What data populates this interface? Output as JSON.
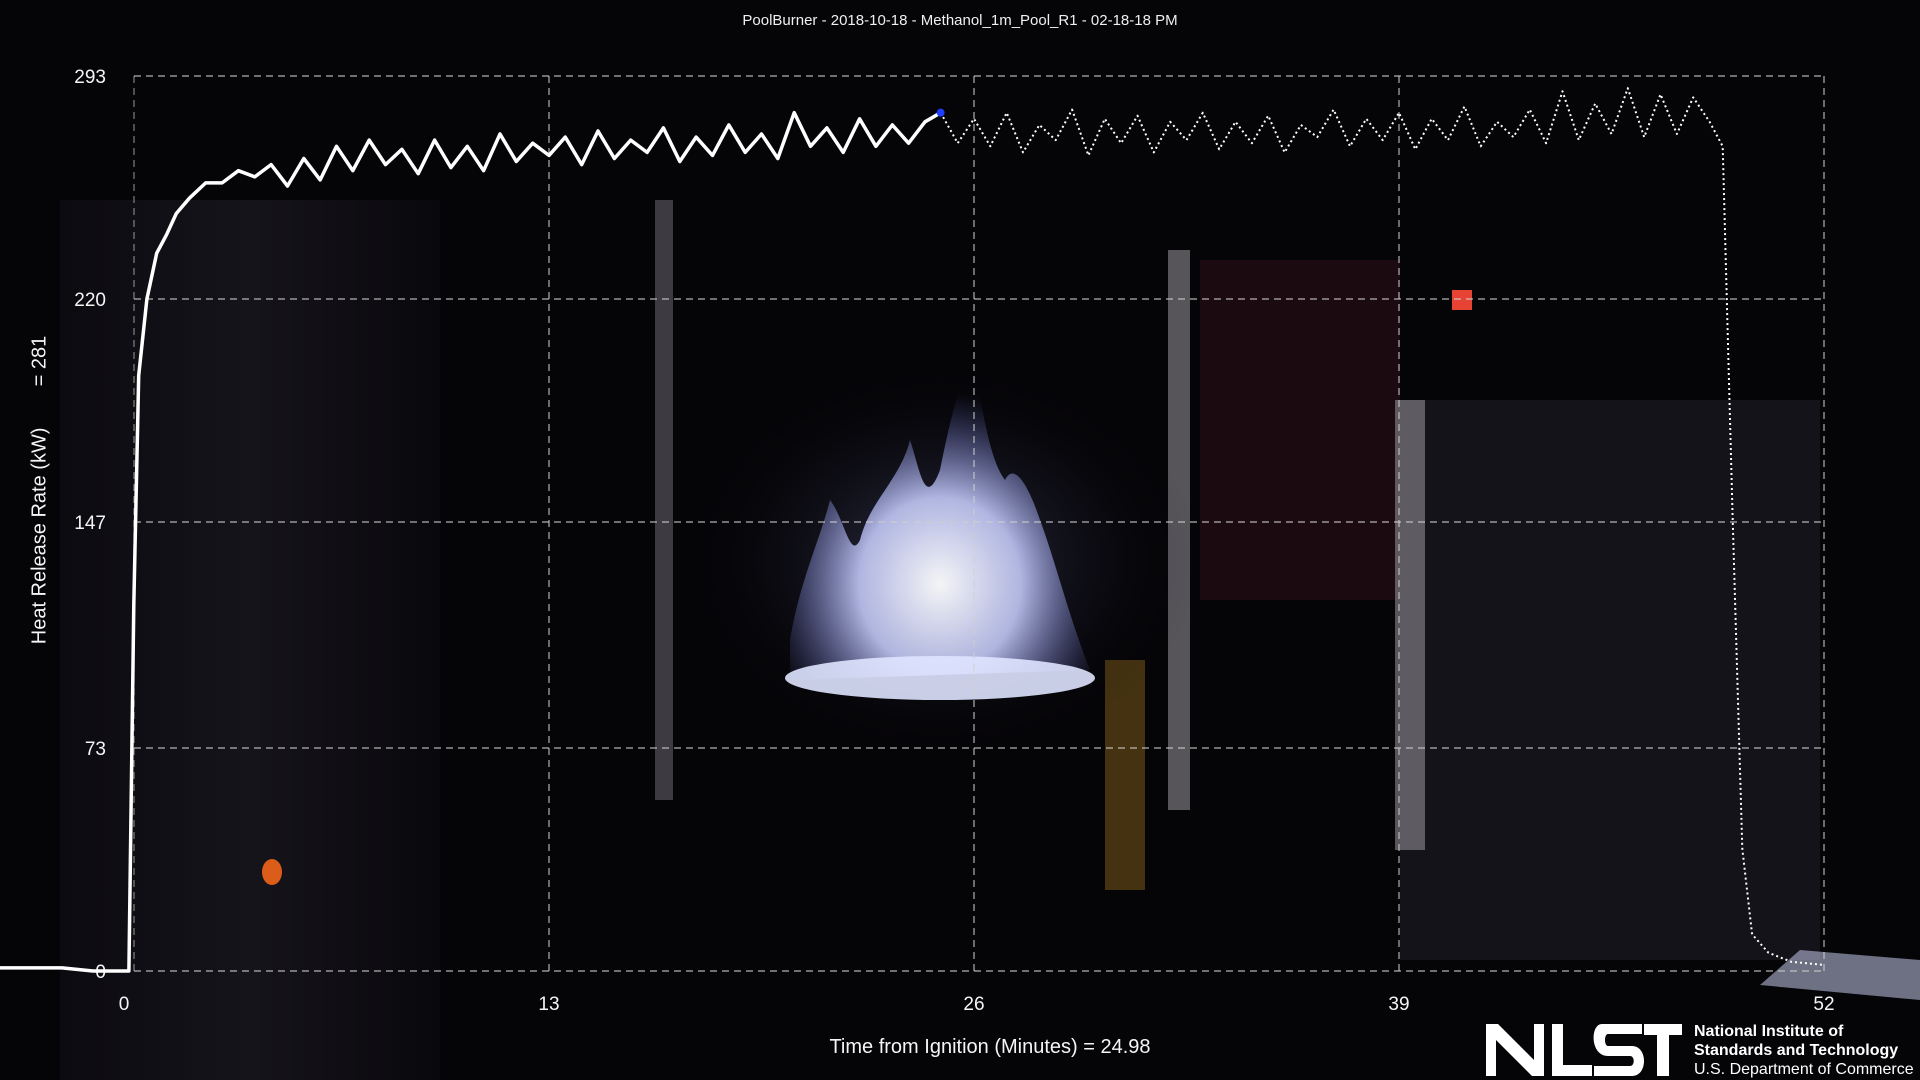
{
  "header": {
    "title": "PoolBurner - 2018-10-18 - Methanol_1m_Pool_R1 - 02-18-18 PM"
  },
  "axes": {
    "ylabel": "Heat Release Rate  (kW)",
    "ylabel_readout_prefix": "=",
    "ylabel_readout_value": "281",
    "xlabel": "Time from Ignition (Minutes)",
    "xlabel_readout_prefix": "=",
    "xlabel_readout_value": "24.98"
  },
  "logo": {
    "mark": "NIST",
    "line1": "National Institute of",
    "line2": "Standards and Technology",
    "line3": "U.S. Department of Commerce"
  },
  "colors": {
    "background": "#000000",
    "line": "#ffffff",
    "grid": "#cfcfcf",
    "cursor": "#1f3fff",
    "flame": "#b9c4ff"
  },
  "chart_data": {
    "type": "line",
    "title": "PoolBurner - 2018-10-18 - Methanol_1m_Pool_R1 - 02-18-18 PM",
    "xlabel": "Time from Ignition (Minutes)",
    "ylabel": "Heat Release Rate  (kW)",
    "xlim": [
      -4,
      52
    ],
    "ylim": [
      0,
      293
    ],
    "x_ticks": [
      0,
      13,
      26,
      39,
      52
    ],
    "y_ticks": [
      0,
      73,
      147,
      220,
      293
    ],
    "grid": true,
    "legend": "none",
    "current_point": {
      "x": 24.98,
      "y": 281
    },
    "series": [
      {
        "style": "solid",
        "points": [
          [
            -4,
            1
          ],
          [
            -3,
            1
          ],
          [
            -2,
            1
          ],
          [
            -1,
            0
          ],
          [
            0,
            0
          ],
          [
            0.15,
            0
          ],
          [
            0.3,
            120
          ],
          [
            0.45,
            195
          ],
          [
            0.7,
            220
          ],
          [
            1.0,
            235
          ],
          [
            1.3,
            241
          ],
          [
            1.6,
            248
          ],
          [
            2.0,
            253
          ],
          [
            2.5,
            258
          ],
          [
            3,
            258
          ],
          [
            3.5,
            262
          ],
          [
            4,
            260
          ],
          [
            4.5,
            264
          ],
          [
            5,
            257
          ],
          [
            5.5,
            266
          ],
          [
            6,
            259
          ],
          [
            6.5,
            270
          ],
          [
            7,
            262
          ],
          [
            7.5,
            272
          ],
          [
            8,
            264
          ],
          [
            8.5,
            269
          ],
          [
            9,
            261
          ],
          [
            9.5,
            272
          ],
          [
            10,
            263
          ],
          [
            10.5,
            270
          ],
          [
            11,
            262
          ],
          [
            11.5,
            274
          ],
          [
            12,
            265
          ],
          [
            12.5,
            271
          ],
          [
            13,
            267
          ],
          [
            13.5,
            273
          ],
          [
            14,
            264
          ],
          [
            14.5,
            275
          ],
          [
            15,
            266
          ],
          [
            15.5,
            272
          ],
          [
            16,
            268
          ],
          [
            16.5,
            276
          ],
          [
            17,
            265
          ],
          [
            17.5,
            273
          ],
          [
            18,
            267
          ],
          [
            18.5,
            277
          ],
          [
            19,
            268
          ],
          [
            19.5,
            274
          ],
          [
            20,
            266
          ],
          [
            20.5,
            281
          ],
          [
            21,
            270
          ],
          [
            21.5,
            276
          ],
          [
            22,
            268
          ],
          [
            22.5,
            279
          ],
          [
            23,
            270
          ],
          [
            23.5,
            277
          ],
          [
            24,
            271
          ],
          [
            24.5,
            278
          ],
          [
            24.98,
            281
          ]
        ]
      },
      {
        "style": "dotted",
        "points": [
          [
            24.98,
            281
          ],
          [
            25.5,
            271
          ],
          [
            26,
            279
          ],
          [
            26.5,
            270
          ],
          [
            27,
            281
          ],
          [
            27.5,
            268
          ],
          [
            28,
            277
          ],
          [
            28.5,
            272
          ],
          [
            29,
            282
          ],
          [
            29.5,
            267
          ],
          [
            30,
            279
          ],
          [
            30.5,
            271
          ],
          [
            31,
            280
          ],
          [
            31.5,
            268
          ],
          [
            32,
            278
          ],
          [
            32.5,
            272
          ],
          [
            33,
            281
          ],
          [
            33.5,
            269
          ],
          [
            34,
            278
          ],
          [
            34.5,
            271
          ],
          [
            35,
            280
          ],
          [
            35.5,
            268
          ],
          [
            36,
            277
          ],
          [
            36.5,
            273
          ],
          [
            37,
            282
          ],
          [
            37.5,
            270
          ],
          [
            38,
            279
          ],
          [
            38.5,
            272
          ],
          [
            39,
            281
          ],
          [
            39.5,
            269
          ],
          [
            40,
            279
          ],
          [
            40.5,
            272
          ],
          [
            41,
            283
          ],
          [
            41.5,
            270
          ],
          [
            42,
            278
          ],
          [
            42.5,
            273
          ],
          [
            43,
            282
          ],
          [
            43.5,
            271
          ],
          [
            44,
            288
          ],
          [
            44.5,
            272
          ],
          [
            45,
            284
          ],
          [
            45.5,
            274
          ],
          [
            46,
            289
          ],
          [
            46.5,
            273
          ],
          [
            47,
            287
          ],
          [
            47.5,
            274
          ],
          [
            48,
            286
          ],
          [
            48.5,
            278
          ],
          [
            48.9,
            270
          ],
          [
            49.2,
            150
          ],
          [
            49.5,
            40
          ],
          [
            49.8,
            12
          ],
          [
            50.3,
            6
          ],
          [
            51,
            3
          ],
          [
            52,
            2
          ]
        ]
      }
    ]
  }
}
